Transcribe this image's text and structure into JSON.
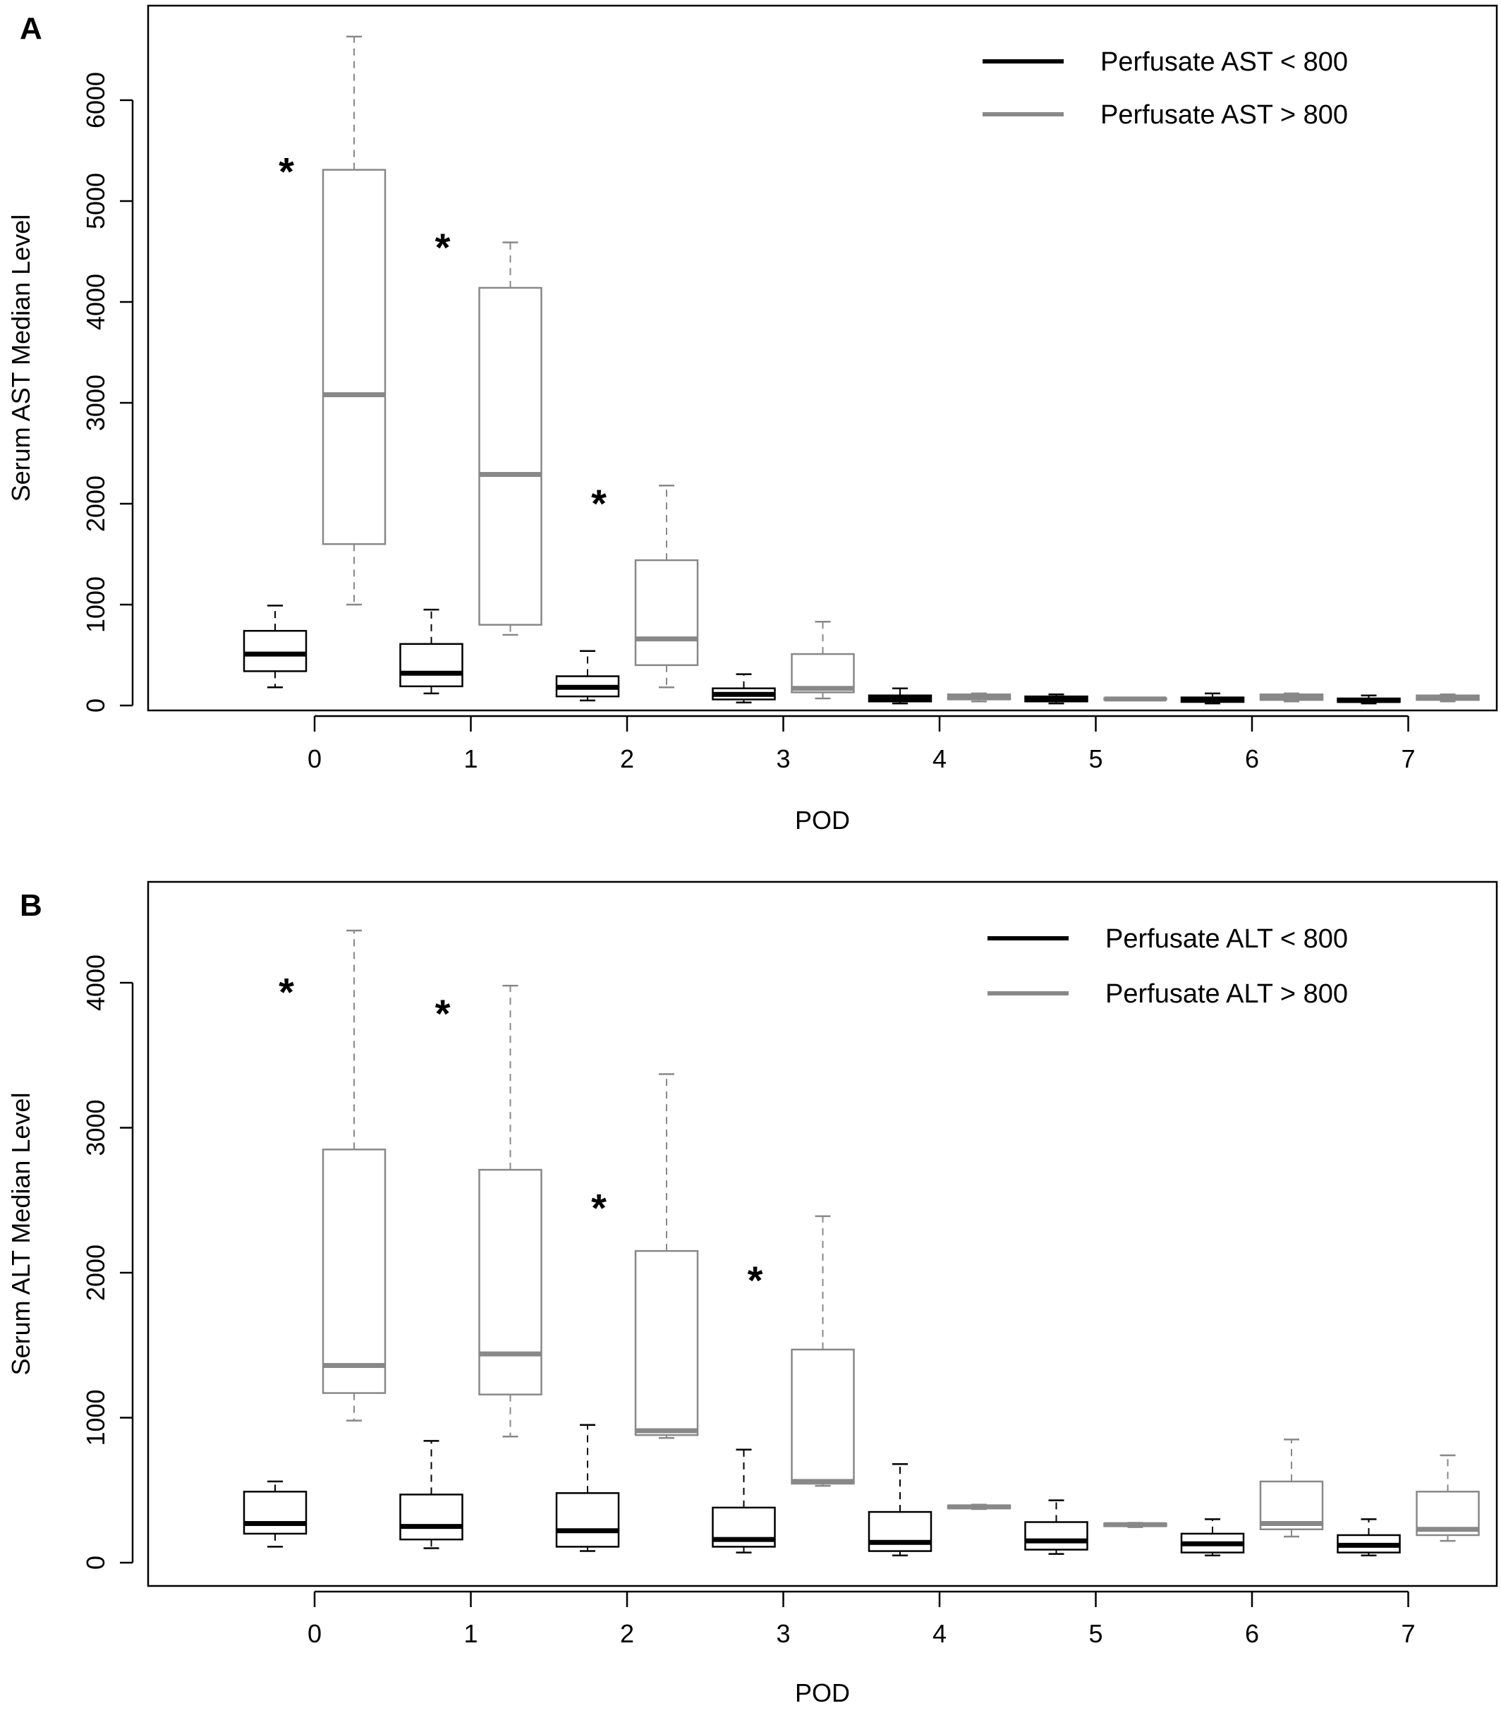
{
  "chart_data": [
    {
      "panel_label": "A",
      "type": "boxplot",
      "xlabel": "POD",
      "ylabel": "Serum AST Median Level",
      "categories": [
        "0",
        "1",
        "2",
        "3",
        "4",
        "5",
        "6",
        "7"
      ],
      "yticks": [
        "0",
        "1000",
        "2000",
        "3000",
        "4000",
        "5000",
        "6000"
      ],
      "ylim": [
        -80,
        6850
      ],
      "series": [
        {
          "name": "Perfusate AST < 800",
          "color": "#000000",
          "boxes": [
            {
              "whisker_low": 180,
              "q1": 340,
              "median": 510,
              "q3": 740,
              "whisker_high": 990
            },
            {
              "whisker_low": 120,
              "q1": 190,
              "median": 320,
              "q3": 610,
              "whisker_high": 950
            },
            {
              "whisker_low": 50,
              "q1": 90,
              "median": 180,
              "q3": 290,
              "whisker_high": 540
            },
            {
              "whisker_low": 30,
              "q1": 60,
              "median": 110,
              "q3": 170,
              "whisker_high": 310
            },
            {
              "whisker_low": 20,
              "q1": 40,
              "median": 70,
              "q3": 100,
              "whisker_high": 170
            },
            {
              "whisker_low": 20,
              "q1": 40,
              "median": 60,
              "q3": 90,
              "whisker_high": 110
            },
            {
              "whisker_low": 20,
              "q1": 35,
              "median": 55,
              "q3": 80,
              "whisker_high": 120
            },
            {
              "whisker_low": 20,
              "q1": 35,
              "median": 50,
              "q3": 70,
              "whisker_high": 100
            }
          ]
        },
        {
          "name": "Perfusate AST > 800",
          "color": "#888888",
          "boxes": [
            {
              "whisker_low": 1000,
              "q1": 1600,
              "median": 3080,
              "q3": 5310,
              "whisker_high": 6630
            },
            {
              "whisker_low": 700,
              "q1": 800,
              "median": 2290,
              "q3": 4140,
              "whisker_high": 4590
            },
            {
              "whisker_low": 180,
              "q1": 400,
              "median": 660,
              "q3": 1440,
              "whisker_high": 2180
            },
            {
              "whisker_low": 70,
              "q1": 130,
              "median": 170,
              "q3": 510,
              "whisker_high": 830
            },
            {
              "whisker_low": 40,
              "q1": 60,
              "median": 90,
              "q3": 110,
              "whisker_high": 120
            },
            {
              "whisker_low": 55,
              "q1": 60,
              "median": 65,
              "q3": 70,
              "whisker_high": 75
            },
            {
              "whisker_low": 40,
              "q1": 55,
              "median": 80,
              "q3": 110,
              "whisker_high": 120
            },
            {
              "whisker_low": 40,
              "q1": 55,
              "median": 75,
              "q3": 100,
              "whisker_high": 110
            }
          ]
        }
      ],
      "significance_marker": "*",
      "significant_pods": [
        0,
        1,
        2
      ],
      "significance_y": [
        5310,
        4560,
        2020
      ],
      "legend_position": "top-right"
    },
    {
      "panel_label": "B",
      "type": "boxplot",
      "xlabel": "POD",
      "ylabel": "Serum ALT Median Level",
      "categories": [
        "0",
        "1",
        "2",
        "3",
        "4",
        "5",
        "6",
        "7"
      ],
      "yticks": [
        "0",
        "1000",
        "2000",
        "3000",
        "4000"
      ],
      "ylim": [
        -110,
        4530
      ],
      "series": [
        {
          "name": "Perfusate ALT < 800",
          "color": "#000000",
          "boxes": [
            {
              "whisker_low": 110,
              "q1": 200,
              "median": 270,
              "q3": 490,
              "whisker_high": 560
            },
            {
              "whisker_low": 100,
              "q1": 160,
              "median": 250,
              "q3": 470,
              "whisker_high": 840
            },
            {
              "whisker_low": 80,
              "q1": 110,
              "median": 220,
              "q3": 480,
              "whisker_high": 950
            },
            {
              "whisker_low": 70,
              "q1": 110,
              "median": 160,
              "q3": 380,
              "whisker_high": 780
            },
            {
              "whisker_low": 50,
              "q1": 80,
              "median": 140,
              "q3": 350,
              "whisker_high": 680
            },
            {
              "whisker_low": 60,
              "q1": 90,
              "median": 150,
              "q3": 280,
              "whisker_high": 430
            },
            {
              "whisker_low": 50,
              "q1": 70,
              "median": 130,
              "q3": 200,
              "whisker_high": 300
            },
            {
              "whisker_low": 50,
              "q1": 70,
              "median": 120,
              "q3": 190,
              "whisker_high": 300
            }
          ]
        },
        {
          "name": "Perfusate ALT > 800",
          "color": "#888888",
          "boxes": [
            {
              "whisker_low": 980,
              "q1": 1170,
              "median": 1360,
              "q3": 2850,
              "whisker_high": 4360
            },
            {
              "whisker_low": 870,
              "q1": 1160,
              "median": 1440,
              "q3": 2710,
              "whisker_high": 3980
            },
            {
              "whisker_low": 860,
              "q1": 880,
              "median": 910,
              "q3": 2150,
              "whisker_high": 3370
            },
            {
              "whisker_low": 530,
              "q1": 545,
              "median": 560,
              "q3": 1470,
              "whisker_high": 2390
            },
            {
              "whisker_low": 370,
              "q1": 375,
              "median": 385,
              "q3": 395,
              "whisker_high": 400
            },
            {
              "whisker_low": 245,
              "q1": 252,
              "median": 262,
              "q3": 270,
              "whisker_high": 275
            },
            {
              "whisker_low": 180,
              "q1": 230,
              "median": 270,
              "q3": 560,
              "whisker_high": 850
            },
            {
              "whisker_low": 150,
              "q1": 190,
              "median": 230,
              "q3": 490,
              "whisker_high": 740
            }
          ]
        }
      ],
      "significance_marker": "*",
      "significant_pods": [
        0,
        1,
        2,
        3
      ],
      "significance_y": [
        3950,
        3800,
        2460,
        1960
      ],
      "legend_position": "top-right"
    }
  ]
}
